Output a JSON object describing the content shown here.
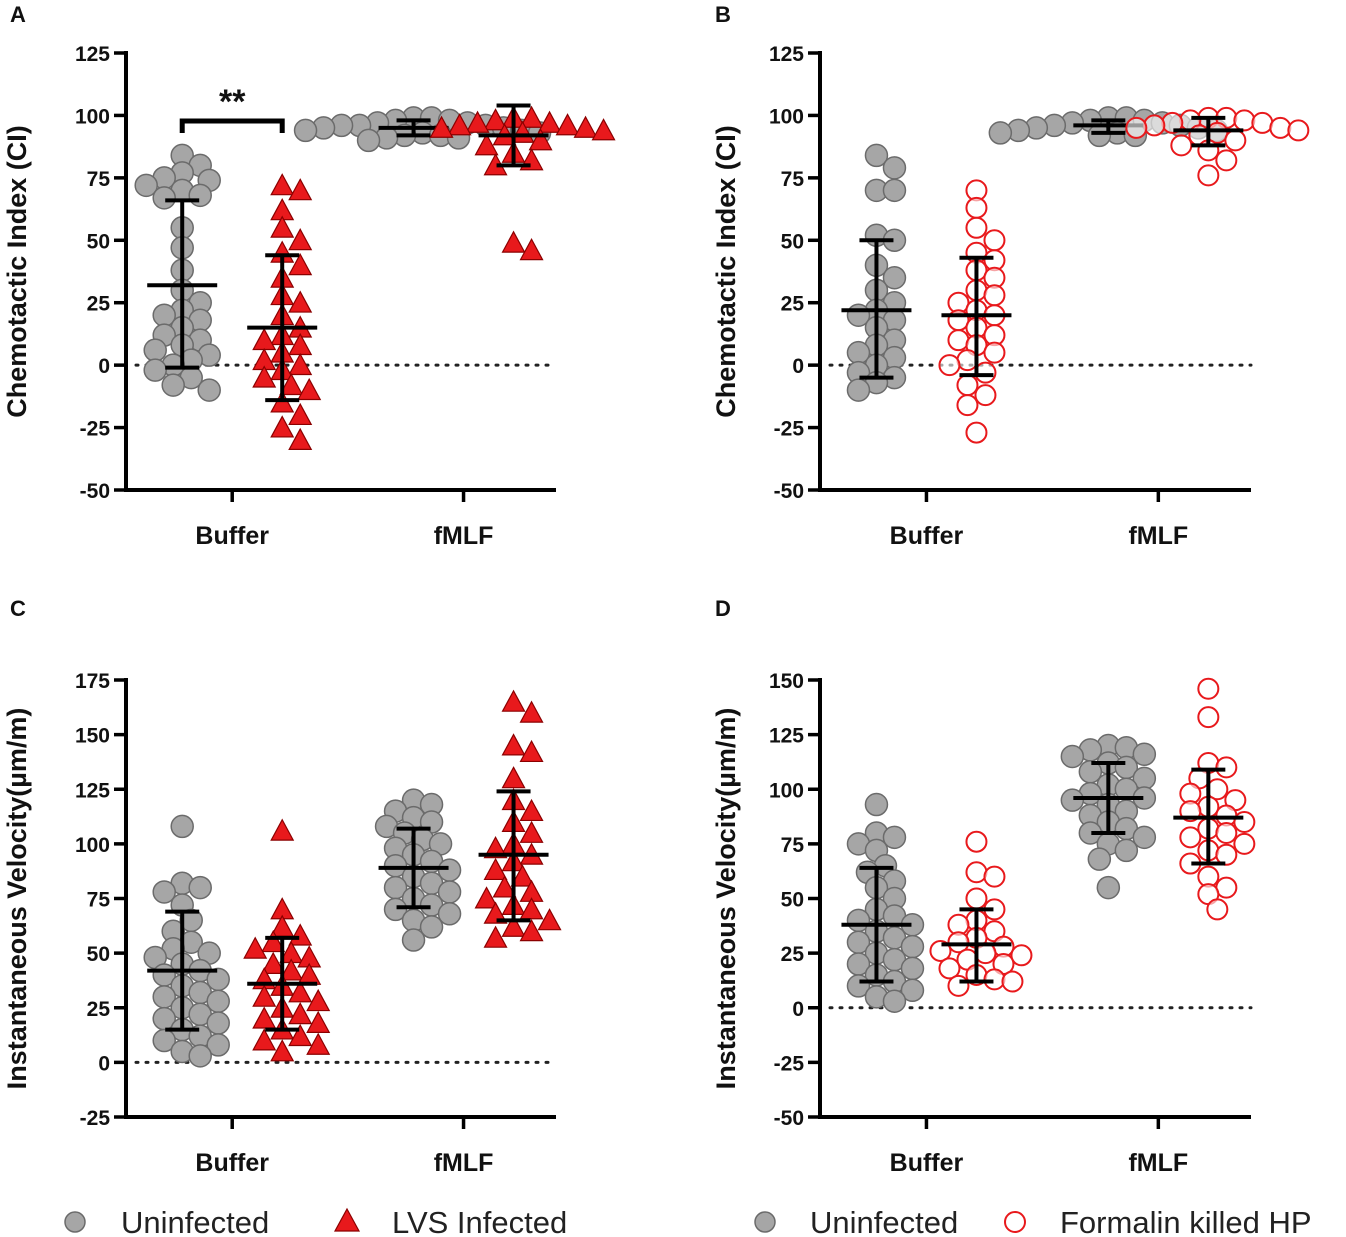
{
  "colors": {
    "uninfected_fill": "#a6a6a6",
    "uninfected_edge": "#6b6b6b",
    "infected_fill": "#e8191c",
    "infected_edge": "#8b0000",
    "hp_edge": "#e8191c",
    "axis": "#000000"
  },
  "legends": {
    "left": {
      "uninfected": "Uninfected",
      "infected": "LVS Infected"
    },
    "right": {
      "uninfected": "Uninfected",
      "infected": "Formalin killed HP"
    }
  },
  "chart_data": [
    {
      "panel": "A",
      "type": "scatter",
      "ylabel": "Chemotactic Index (CI)",
      "categories": [
        "Buffer",
        "fMLF"
      ],
      "ylim": [
        -50,
        125
      ],
      "yticks": [
        "125",
        "100",
        "75",
        "50",
        "25",
        "0",
        "-25",
        "-50"
      ],
      "yticks_values": [
        125,
        100,
        75,
        50,
        25,
        0,
        -25,
        -50
      ],
      "reference_line": 0,
      "annotation": "**",
      "series": [
        {
          "name": "Uninfected",
          "marker": "circle",
          "groups": [
            {
              "category": "Buffer",
              "mean": 32,
              "sd_low": -1,
              "sd_high": 66,
              "points": [
                84,
                80,
                77,
                75,
                74,
                72,
                70,
                68,
                67,
                55,
                47,
                38,
                30,
                25,
                22,
                20,
                18,
                15,
                12,
                10,
                8,
                6,
                4,
                2,
                0,
                -2,
                -5,
                -8,
                -10
              ]
            },
            {
              "category": "fMLF",
              "mean": 95,
              "sd_low": 92,
              "sd_high": 98,
              "points": [
                99,
                99,
                98,
                98,
                97,
                97,
                96,
                96,
                96,
                95,
                95,
                94,
                94,
                93,
                93,
                92,
                92,
                91,
                91,
                90
              ]
            }
          ]
        },
        {
          "name": "LVS Infected",
          "marker": "triangle",
          "groups": [
            {
              "category": "Buffer",
              "mean": 15,
              "sd_low": -14,
              "sd_high": 44,
              "points": [
                72,
                70,
                62,
                55,
                50,
                45,
                40,
                35,
                28,
                25,
                20,
                15,
                12,
                10,
                8,
                5,
                2,
                0,
                -2,
                -5,
                -8,
                -10,
                -15,
                -20,
                -25,
                -30
              ]
            },
            {
              "category": "fMLF",
              "mean": 92,
              "sd_low": 80,
              "sd_high": 104,
              "points": [
                99,
                99,
                98,
                97,
                97,
                96,
                96,
                95,
                95,
                94,
                93,
                92,
                90,
                88,
                85,
                82,
                80,
                49,
                46
              ]
            }
          ]
        }
      ]
    },
    {
      "panel": "B",
      "type": "scatter",
      "ylabel": "Chemotactic Index (CI)",
      "categories": [
        "Buffer",
        "fMLF"
      ],
      "ylim": [
        -50,
        125
      ],
      "yticks": [
        "125",
        "100",
        "75",
        "50",
        "25",
        "0",
        "-25",
        "-50"
      ],
      "yticks_values": [
        125,
        100,
        75,
        50,
        25,
        0,
        -25,
        -50
      ],
      "reference_line": 0,
      "series": [
        {
          "name": "Uninfected",
          "marker": "circle",
          "groups": [
            {
              "category": "Buffer",
              "mean": 22,
              "sd_low": -5,
              "sd_high": 50,
              "points": [
                84,
                79,
                70,
                70,
                52,
                50,
                40,
                35,
                30,
                25,
                22,
                20,
                18,
                15,
                10,
                8,
                5,
                3,
                0,
                -3,
                -5,
                -7,
                -10
              ]
            },
            {
              "category": "fMLF",
              "mean": 96,
              "sd_low": 93,
              "sd_high": 98,
              "points": [
                99,
                99,
                98,
                98,
                97,
                97,
                96,
                96,
                95,
                95,
                94,
                94,
                93,
                93,
                92,
                92
              ]
            }
          ]
        },
        {
          "name": "Formalin killed HP",
          "marker": "open-circle",
          "groups": [
            {
              "category": "Buffer",
              "mean": 20,
              "sd_low": -4,
              "sd_high": 43,
              "points": [
                70,
                63,
                55,
                50,
                45,
                42,
                38,
                35,
                30,
                28,
                25,
                22,
                20,
                18,
                15,
                12,
                10,
                8,
                5,
                2,
                0,
                -3,
                -8,
                -12,
                -16,
                -27
              ]
            },
            {
              "category": "fMLF",
              "mean": 94,
              "sd_low": 88,
              "sd_high": 99,
              "points": [
                99,
                99,
                98,
                98,
                97,
                97,
                96,
                95,
                95,
                94,
                93,
                92,
                90,
                88,
                86,
                82,
                76
              ]
            }
          ]
        }
      ]
    },
    {
      "panel": "C",
      "type": "scatter",
      "ylabel": "Instantaneous Velocity(µm/m)",
      "categories": [
        "Buffer",
        "fMLF"
      ],
      "ylim": [
        -25,
        175
      ],
      "yticks": [
        "175",
        "150",
        "125",
        "100",
        "75",
        "50",
        "25",
        "0",
        "-25"
      ],
      "yticks_values": [
        175,
        150,
        125,
        100,
        75,
        50,
        25,
        0,
        -25
      ],
      "reference_line": 0,
      "series": [
        {
          "name": "Uninfected",
          "marker": "circle",
          "groups": [
            {
              "category": "Buffer",
              "mean": 42,
              "sd_low": 15,
              "sd_high": 69,
              "points": [
                108,
                82,
                80,
                78,
                72,
                65,
                60,
                55,
                52,
                50,
                48,
                45,
                42,
                40,
                38,
                35,
                32,
                30,
                28,
                25,
                22,
                20,
                18,
                15,
                12,
                10,
                8,
                5,
                3
              ]
            },
            {
              "category": "fMLF",
              "mean": 89,
              "sd_low": 71,
              "sd_high": 107,
              "points": [
                120,
                118,
                115,
                112,
                110,
                108,
                105,
                102,
                100,
                98,
                95,
                92,
                90,
                88,
                85,
                82,
                80,
                78,
                75,
                72,
                70,
                68,
                65,
                62,
                56
              ]
            }
          ]
        },
        {
          "name": "LVS Infected",
          "marker": "triangle",
          "groups": [
            {
              "category": "Buffer",
              "mean": 36,
              "sd_low": 15,
              "sd_high": 57,
              "points": [
                106,
                70,
                62,
                58,
                55,
                52,
                50,
                48,
                45,
                42,
                40,
                38,
                35,
                32,
                30,
                28,
                25,
                22,
                20,
                18,
                15,
                12,
                10,
                8,
                5
              ]
            },
            {
              "category": "fMLF",
              "mean": 95,
              "sd_low": 65,
              "sd_high": 124,
              "points": [
                165,
                160,
                145,
                142,
                130,
                120,
                115,
                110,
                105,
                100,
                98,
                95,
                92,
                88,
                85,
                80,
                78,
                75,
                72,
                70,
                68,
                65,
                62,
                60,
                57
              ]
            }
          ]
        }
      ]
    },
    {
      "panel": "D",
      "type": "scatter",
      "ylabel": "Instantaneous Velocity(µm/m)",
      "categories": [
        "Buffer",
        "fMLF"
      ],
      "ylim": [
        -50,
        150
      ],
      "yticks": [
        "150",
        "125",
        "100",
        "75",
        "50",
        "25",
        "0",
        "-25",
        "-50"
      ],
      "yticks_values": [
        150,
        125,
        100,
        75,
        50,
        25,
        0,
        -25,
        -50
      ],
      "reference_line": 0,
      "series": [
        {
          "name": "Uninfected",
          "marker": "circle",
          "groups": [
            {
              "category": "Buffer",
              "mean": 38,
              "sd_low": 12,
              "sd_high": 64,
              "points": [
                93,
                80,
                78,
                75,
                72,
                65,
                62,
                58,
                55,
                50,
                45,
                42,
                40,
                38,
                35,
                32,
                30,
                28,
                25,
                22,
                20,
                18,
                15,
                12,
                10,
                8,
                5,
                3
              ]
            },
            {
              "category": "fMLF",
              "mean": 96,
              "sd_low": 80,
              "sd_high": 112,
              "points": [
                120,
                119,
                118,
                116,
                115,
                112,
                110,
                108,
                105,
                102,
                100,
                98,
                96,
                95,
                93,
                90,
                88,
                85,
                82,
                80,
                78,
                75,
                72,
                68,
                55
              ]
            }
          ]
        },
        {
          "name": "Formalin killed HP",
          "marker": "open-circle",
          "groups": [
            {
              "category": "Buffer",
              "mean": 29,
              "sd_low": 12,
              "sd_high": 45,
              "points": [
                76,
                62,
                60,
                50,
                45,
                40,
                38,
                35,
                32,
                30,
                28,
                26,
                25,
                24,
                22,
                20,
                18,
                15,
                13,
                12,
                10
              ]
            },
            {
              "category": "fMLF",
              "mean": 87,
              "sd_low": 66,
              "sd_high": 109,
              "points": [
                146,
                133,
                112,
                110,
                105,
                100,
                98,
                95,
                92,
                90,
                88,
                85,
                82,
                80,
                78,
                75,
                72,
                70,
                66,
                60,
                55,
                52,
                45
              ]
            }
          ]
        }
      ]
    }
  ]
}
